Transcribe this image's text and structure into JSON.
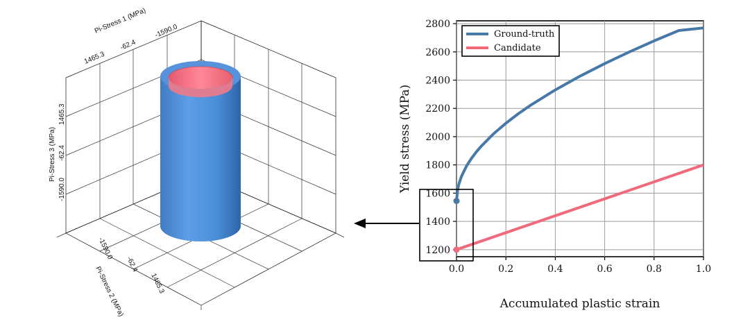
{
  "chart_data": [
    {
      "type": "surface3d",
      "axes": [
        {
          "label": "Pi-Stress 1 (MPa)",
          "ticks": [
            "1465.3",
            "-62.4",
            "-1590.0"
          ]
        },
        {
          "label": "Pi-Stress 2 (MPa)",
          "ticks": [
            "-1590.0",
            "-62.4",
            "1465.3"
          ]
        },
        {
          "label": "Pi-Stress 3 (MPa)",
          "ticks": [
            "1465.3",
            "-62.4",
            "-1590.0"
          ]
        }
      ],
      "surfaces": [
        {
          "name": "Ground-truth",
          "shape": "cylinder",
          "color": "#4a8ed8"
        },
        {
          "name": "Candidate",
          "shape": "cylinder",
          "color": "#f0707f"
        }
      ]
    },
    {
      "type": "line",
      "xlabel": "Accumulated plastic strain",
      "ylabel": "Yield stress (MPa)",
      "xlim": [
        0.0,
        1.0
      ],
      "ylim": [
        1150,
        2820
      ],
      "xticks": [
        0.0,
        0.2,
        0.4,
        0.6,
        0.8,
        1.0
      ],
      "xtick_labels": [
        "0.0",
        "0.2",
        "0.4",
        "0.6",
        "0.8",
        "1.0"
      ],
      "yticks": [
        1200,
        1400,
        1600,
        1800,
        2000,
        2200,
        2400,
        2600,
        2800
      ],
      "ytick_labels": [
        "1200",
        "1400",
        "1600",
        "1800",
        "2000",
        "2200",
        "2400",
        "2600",
        "2800"
      ],
      "grid": true,
      "legend": "top-left",
      "series": [
        {
          "name": "Ground-truth",
          "color": "#4878a8",
          "x": [
            0.0,
            0.005,
            0.01,
            0.02,
            0.04,
            0.06,
            0.08,
            0.1,
            0.15,
            0.2,
            0.25,
            0.3,
            0.4,
            0.5,
            0.6,
            0.7,
            0.8,
            0.9,
            1.0
          ],
          "y": [
            1545,
            1631,
            1667,
            1718,
            1790,
            1845,
            1891,
            1932,
            2020,
            2095,
            2162,
            2222,
            2331,
            2428,
            2517,
            2600,
            2678,
            2751,
            2770
          ]
        },
        {
          "name": "Candidate",
          "color": "#f06a7c",
          "x": [
            0.0,
            1.0
          ],
          "y": [
            1200,
            1800
          ]
        }
      ],
      "markers": [
        {
          "series": "Ground-truth",
          "x": 0.0,
          "y": 1545
        },
        {
          "series": "Candidate",
          "x": 0.0,
          "y": 1200
        }
      ]
    }
  ]
}
